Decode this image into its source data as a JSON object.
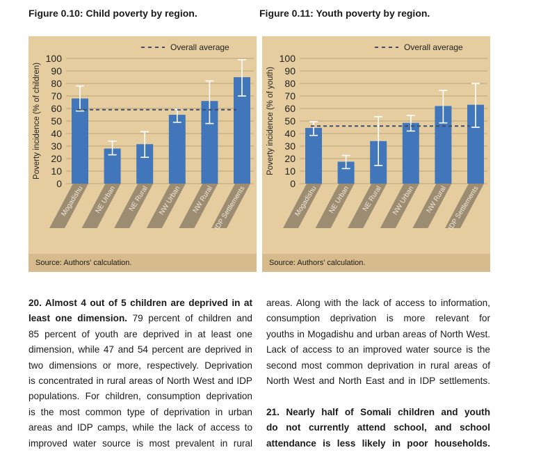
{
  "figures": [
    {
      "title": "Figure 0.10: Child poverty by region.",
      "source": "Source: Authors' calculation.",
      "legend": "Overall average"
    },
    {
      "title": "Figure 0.11: Youth poverty by region.",
      "source": "Source: Authors' calculation.",
      "legend": "Overall average"
    }
  ],
  "chart_data": [
    {
      "type": "bar",
      "title": "Figure 0.10: Child poverty by region.",
      "ylabel": "Poverty incidence (% of children)",
      "ylim": [
        0,
        100
      ],
      "yticks": [
        0,
        10,
        20,
        30,
        40,
        50,
        60,
        70,
        80,
        90,
        100
      ],
      "grid": true,
      "legend_placement": "top-right",
      "categories": [
        "Mogadishu",
        "NE Urban",
        "NE Rural",
        "NW Urban",
        "NW Rural",
        "IDP Settlements"
      ],
      "values": [
        68,
        28,
        31.5,
        55,
        66,
        85
      ],
      "error_low": [
        58,
        23,
        21,
        49,
        48,
        70
      ],
      "error_high": [
        78,
        34,
        41.5,
        59.5,
        82,
        99
      ],
      "overall_average": 59,
      "bar_color": "#4177ba",
      "average_color": "#3a4e6e"
    },
    {
      "type": "bar",
      "title": "Figure 0.11: Youth poverty by region.",
      "ylabel": "Poverty incidence (% of youth)",
      "ylim": [
        0,
        100
      ],
      "yticks": [
        0,
        10,
        20,
        30,
        40,
        50,
        60,
        70,
        80,
        90,
        100
      ],
      "grid": true,
      "legend_placement": "top-right",
      "categories": [
        "Mogadishu",
        "NE Urban",
        "NE Rural",
        "NW Urban",
        "NW Rural",
        "IDP Settlements"
      ],
      "values": [
        44.5,
        17.5,
        34,
        48.5,
        62,
        63
      ],
      "error_low": [
        38.5,
        12,
        14.5,
        42,
        48.5,
        45
      ],
      "error_high": [
        49.5,
        22.5,
        53.5,
        54.5,
        74.5,
        80
      ],
      "overall_average": 46,
      "bar_color": "#4177ba",
      "average_color": "#3a4e6e"
    }
  ],
  "text": {
    "left": [
      [
        {
          "b": true,
          "t": "20.  Almost 4 out of 5 children are deprived in at"
        }
      ],
      [
        {
          "b": true,
          "t": "least one dimension."
        },
        {
          "t": " 79 percent of children and"
        }
      ],
      [
        {
          "t": "85 percent of youth are deprived in at least one"
        }
      ],
      [
        {
          "t": "dimension, while 47 and 54 percent are deprived in"
        }
      ],
      [
        {
          "t": "two dimensions or more, respectively. Deprivation"
        }
      ],
      [
        {
          "t": "is concentrated in rural areas of North West and IDP"
        }
      ],
      [
        {
          "t": "populations. For children, consumption deprivation"
        }
      ],
      [
        {
          "t": "is the most common type of deprivation in urban"
        }
      ],
      [
        {
          "t": "areas and IDP camps, while the lack of access to"
        }
      ],
      [
        {
          "t": "improved water source is most prevalent in rural"
        }
      ]
    ],
    "right": [
      [
        {
          "t": "areas. Along with the lack of access to information,"
        }
      ],
      [
        {
          "t": "consumption deprivation is more relevant for"
        }
      ],
      [
        {
          "t": "youths in Mogadishu and urban areas of North West."
        }
      ],
      [
        {
          "t": "Lack of access to an improved water source is the"
        }
      ],
      [
        {
          "t": "second most common deprivation in rural areas of"
        }
      ],
      [
        {
          "t": "North West and North East and in IDP settlements."
        }
      ],
      [],
      [
        {
          "b": true,
          "t": "21. Nearly half of Somali children and youth"
        }
      ],
      [
        {
          "b": true,
          "t": "do not currently attend school, and school"
        }
      ],
      [
        {
          "b": true,
          "t": "attendance is less likely in poor households."
        }
      ]
    ]
  }
}
